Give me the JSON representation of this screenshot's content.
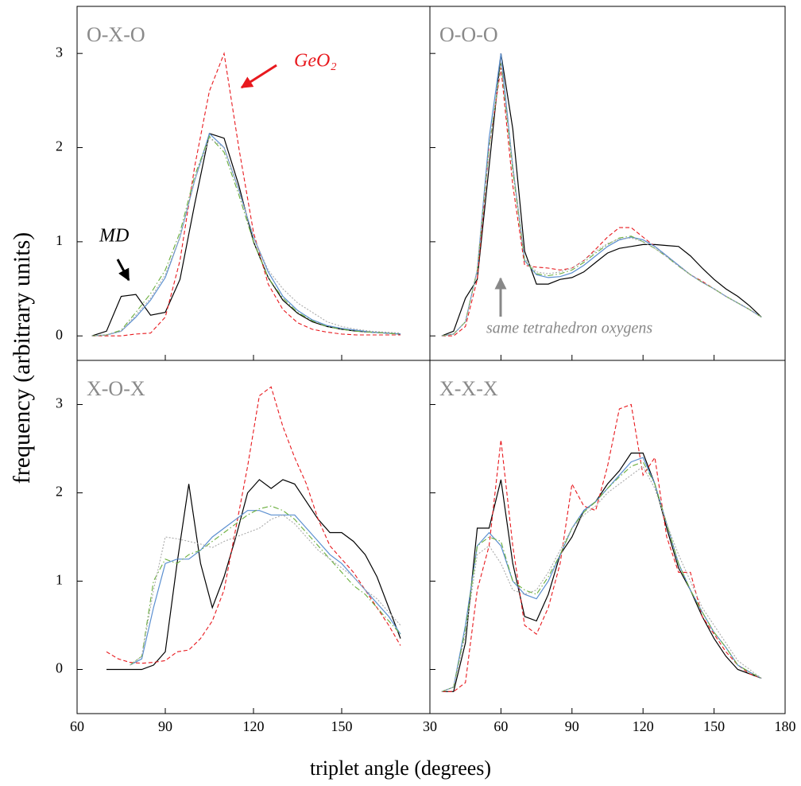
{
  "xlabel": "triplet angle (degrees)",
  "ylabel": "frequency (arbitrary units)",
  "chart_data": [
    {
      "type": "line",
      "title": "O-X-O",
      "annotations": [
        {
          "text": "MD",
          "color": "#000000"
        },
        {
          "text": "GeO₂",
          "color": "#e8191e"
        }
      ],
      "x": [
        65,
        70,
        75,
        80,
        85,
        90,
        95,
        100,
        105,
        110,
        115,
        120,
        125,
        130,
        135,
        140,
        145,
        150,
        155,
        160,
        165,
        170
      ],
      "xlim": [
        60,
        180
      ],
      "xticks": [
        60,
        90,
        120,
        150
      ],
      "ylim": [
        -0.26,
        3.5
      ],
      "yticks": [
        0,
        1,
        2,
        3
      ],
      "series": [
        {
          "color": "#000000",
          "style": "solid",
          "values": [
            0,
            0.05,
            0.42,
            0.44,
            0.22,
            0.25,
            0.6,
            1.4,
            2.15,
            2.1,
            1.6,
            1.0,
            0.62,
            0.38,
            0.24,
            0.15,
            0.1,
            0.07,
            0.05,
            0.04,
            0.03,
            0.02
          ]
        },
        {
          "color": "#e8191e",
          "style": "dashed",
          "values": [
            0,
            0,
            0,
            0.02,
            0.03,
            0.2,
            0.8,
            1.8,
            2.6,
            3.0,
            2.0,
            1.1,
            0.55,
            0.28,
            0.14,
            0.07,
            0.04,
            0.02,
            0.01,
            0.01,
            0.01,
            0.01
          ]
        },
        {
          "color": "#5b8fd0",
          "style": "solid",
          "values": [
            0,
            0.01,
            0.05,
            0.2,
            0.38,
            0.62,
            1.05,
            1.65,
            2.15,
            2.0,
            1.55,
            1.05,
            0.68,
            0.42,
            0.27,
            0.17,
            0.11,
            0.08,
            0.06,
            0.04,
            0.03,
            0.02
          ]
        },
        {
          "color": "#6aae3c",
          "style": "dashdot",
          "values": [
            0,
            0.01,
            0.06,
            0.25,
            0.45,
            0.7,
            1.1,
            1.7,
            2.12,
            1.95,
            1.5,
            1.0,
            0.62,
            0.4,
            0.25,
            0.16,
            0.1,
            0.07,
            0.05,
            0.04,
            0.03,
            0.02
          ]
        },
        {
          "color": "#aaaaaa",
          "style": "dotted",
          "values": [
            0,
            0.01,
            0.05,
            0.22,
            0.4,
            0.65,
            1.05,
            1.65,
            2.1,
            2.0,
            1.55,
            1.05,
            0.7,
            0.5,
            0.35,
            0.25,
            0.15,
            0.1,
            0.07,
            0.05,
            0.04,
            0.03
          ]
        }
      ]
    },
    {
      "type": "line",
      "title": "O-O-O",
      "annotations": [
        {
          "text": "same tetrahedron oxygens",
          "color": "#888888"
        }
      ],
      "x": [
        35,
        40,
        45,
        50,
        55,
        60,
        65,
        70,
        75,
        80,
        85,
        90,
        95,
        100,
        105,
        110,
        115,
        120,
        125,
        130,
        135,
        140,
        145,
        150,
        155,
        160,
        165,
        170
      ],
      "xlim": [
        30,
        180
      ],
      "xticks": [
        30,
        60,
        90,
        120,
        150,
        180
      ],
      "ylim": [
        -0.26,
        3.5
      ],
      "yticks": [
        0,
        1,
        2,
        3
      ],
      "series": [
        {
          "color": "#000000",
          "style": "solid",
          "values": [
            0,
            0.05,
            0.4,
            0.6,
            1.8,
            3.0,
            2.2,
            0.9,
            0.55,
            0.55,
            0.6,
            0.62,
            0.68,
            0.78,
            0.88,
            0.93,
            0.95,
            0.97,
            0.97,
            0.96,
            0.95,
            0.85,
            0.72,
            0.6,
            0.5,
            0.42,
            0.32,
            0.2
          ]
        },
        {
          "color": "#e8191e",
          "style": "dashed",
          "values": [
            0,
            0,
            0.1,
            0.6,
            2.0,
            2.85,
            1.6,
            0.75,
            0.73,
            0.72,
            0.7,
            0.72,
            0.8,
            0.92,
            1.05,
            1.15,
            1.15,
            1.05,
            0.95,
            0.85,
            0.75,
            0.65,
            0.58,
            0.5,
            0.42,
            0.35,
            0.28,
            0.2
          ]
        },
        {
          "color": "#5b8fd0",
          "style": "solid",
          "values": [
            0,
            0.02,
            0.15,
            0.7,
            2.1,
            3.0,
            1.8,
            0.8,
            0.65,
            0.62,
            0.63,
            0.67,
            0.75,
            0.85,
            0.95,
            1.02,
            1.05,
            1.02,
            0.95,
            0.85,
            0.75,
            0.65,
            0.57,
            0.5,
            0.42,
            0.35,
            0.28,
            0.2
          ]
        },
        {
          "color": "#6aae3c",
          "style": "dashdot",
          "values": [
            0,
            0.02,
            0.15,
            0.7,
            2.0,
            2.9,
            1.75,
            0.8,
            0.66,
            0.64,
            0.66,
            0.7,
            0.78,
            0.88,
            0.97,
            1.04,
            1.06,
            1.0,
            0.93,
            0.84,
            0.74,
            0.65,
            0.57,
            0.5,
            0.42,
            0.35,
            0.28,
            0.2
          ]
        },
        {
          "color": "#aaaaaa",
          "style": "dotted",
          "values": [
            0,
            0.02,
            0.15,
            0.7,
            2.0,
            2.9,
            1.8,
            0.82,
            0.68,
            0.66,
            0.68,
            0.72,
            0.8,
            0.9,
            0.98,
            1.03,
            1.04,
            1.0,
            0.93,
            0.84,
            0.74,
            0.65,
            0.57,
            0.5,
            0.42,
            0.35,
            0.28,
            0.2
          ]
        }
      ]
    },
    {
      "type": "line",
      "title": "X-O-X",
      "annotations": [],
      "x": [
        70,
        74,
        78,
        82,
        86,
        90,
        94,
        98,
        102,
        106,
        110,
        114,
        118,
        122,
        126,
        130,
        134,
        138,
        142,
        146,
        150,
        154,
        158,
        162,
        166,
        170
      ],
      "xlim": [
        60,
        180
      ],
      "xticks": [
        60,
        90,
        120,
        150
      ],
      "ylim": [
        -0.5,
        3.5
      ],
      "yticks": [
        0,
        1,
        2,
        3
      ],
      "series": [
        {
          "color": "#000000",
          "style": "solid",
          "values": [
            0,
            0,
            0,
            0,
            0.05,
            0.2,
            1.2,
            2.1,
            1.2,
            0.7,
            1.05,
            1.5,
            2.0,
            2.15,
            2.05,
            2.15,
            2.1,
            1.9,
            1.7,
            1.55,
            1.55,
            1.45,
            1.3,
            1.05,
            0.7,
            0.35
          ]
        },
        {
          "color": "#e8191e",
          "style": "dashed",
          "values": [
            0.2,
            0.12,
            0.08,
            0.07,
            0.08,
            0.1,
            0.2,
            0.22,
            0.35,
            0.55,
            0.9,
            1.6,
            2.3,
            3.1,
            3.2,
            2.75,
            2.4,
            2.1,
            1.7,
            1.4,
            1.25,
            1.1,
            0.9,
            0.7,
            0.5,
            0.27
          ]
        },
        {
          "color": "#5b8fd0",
          "style": "solid",
          "values": [
            null,
            null,
            0.05,
            0.12,
            0.7,
            1.2,
            1.25,
            1.25,
            1.35,
            1.5,
            1.6,
            1.7,
            1.8,
            1.8,
            1.75,
            1.75,
            1.75,
            1.6,
            1.45,
            1.3,
            1.2,
            1.05,
            0.9,
            0.75,
            0.6,
            0.4
          ]
        },
        {
          "color": "#6aae3c",
          "style": "dashdot",
          "values": [
            null,
            null,
            0.05,
            0.15,
            1.0,
            1.25,
            1.2,
            1.3,
            1.35,
            1.45,
            1.55,
            1.65,
            1.75,
            1.82,
            1.85,
            1.8,
            1.7,
            1.55,
            1.4,
            1.25,
            1.1,
            0.95,
            0.85,
            0.7,
            0.55,
            0.4
          ]
        },
        {
          "color": "#aaaaaa",
          "style": "dotted",
          "values": [
            null,
            null,
            0.05,
            0.15,
            0.9,
            1.5,
            1.48,
            1.45,
            1.42,
            1.38,
            1.45,
            1.5,
            1.55,
            1.6,
            1.7,
            1.75,
            1.65,
            1.5,
            1.35,
            1.25,
            1.15,
            1.05,
            0.9,
            0.8,
            0.65,
            0.5
          ]
        }
      ]
    },
    {
      "type": "line",
      "title": "X-X-X",
      "annotations": [],
      "x": [
        35,
        40,
        45,
        50,
        55,
        60,
        65,
        70,
        75,
        80,
        85,
        90,
        95,
        100,
        105,
        110,
        115,
        120,
        125,
        130,
        135,
        140,
        145,
        150,
        155,
        160,
        165,
        170
      ],
      "xlim": [
        30,
        180
      ],
      "xticks": [
        30,
        60,
        90,
        120,
        150,
        180
      ],
      "ylim": [
        -0.5,
        3.5
      ],
      "yticks": [
        0,
        1,
        2,
        3
      ],
      "series": [
        {
          "color": "#000000",
          "style": "solid",
          "values": [
            -0.25,
            -0.25,
            0.3,
            1.6,
            1.6,
            2.15,
            1.2,
            0.6,
            0.55,
            0.85,
            1.3,
            1.5,
            1.8,
            1.9,
            2.1,
            2.25,
            2.45,
            2.45,
            2.1,
            1.6,
            1.15,
            0.9,
            0.6,
            0.35,
            0.15,
            0,
            -0.05,
            -0.1
          ]
        },
        {
          "color": "#e8191e",
          "style": "dashed",
          "values": [
            -0.25,
            -0.25,
            -0.15,
            0.9,
            1.4,
            2.6,
            1.4,
            0.5,
            0.4,
            0.7,
            1.2,
            2.1,
            1.85,
            1.8,
            2.3,
            2.95,
            3.0,
            2.2,
            2.4,
            1.5,
            1.1,
            1.1,
            0.6,
            0.4,
            0.2,
            0.05,
            -0.05,
            -0.1
          ]
        },
        {
          "color": "#5b8fd0",
          "style": "solid",
          "values": [
            -0.25,
            -0.2,
            0.5,
            1.4,
            1.55,
            1.4,
            1.0,
            0.85,
            0.8,
            1.0,
            1.3,
            1.6,
            1.8,
            1.9,
            2.05,
            2.2,
            2.35,
            2.4,
            2.1,
            1.65,
            1.2,
            0.9,
            0.65,
            0.42,
            0.25,
            0.05,
            -0.03,
            -0.1
          ]
        },
        {
          "color": "#6aae3c",
          "style": "dashdot",
          "values": [
            -0.25,
            -0.2,
            0.45,
            1.4,
            1.5,
            1.45,
            1.0,
            0.9,
            0.85,
            1.05,
            1.3,
            1.6,
            1.78,
            1.9,
            2.05,
            2.18,
            2.3,
            2.35,
            2.1,
            1.65,
            1.2,
            0.9,
            0.65,
            0.42,
            0.25,
            0.05,
            -0.03,
            -0.1
          ]
        },
        {
          "color": "#aaaaaa",
          "style": "dotted",
          "values": [
            -0.25,
            -0.2,
            0.4,
            1.3,
            1.4,
            1.2,
            0.9,
            0.85,
            0.9,
            1.1,
            1.35,
            1.6,
            1.75,
            1.85,
            2.0,
            2.1,
            2.2,
            2.3,
            2.05,
            1.65,
            1.3,
            1.0,
            0.7,
            0.5,
            0.3,
            0.1,
            0,
            -0.1
          ]
        }
      ]
    }
  ]
}
